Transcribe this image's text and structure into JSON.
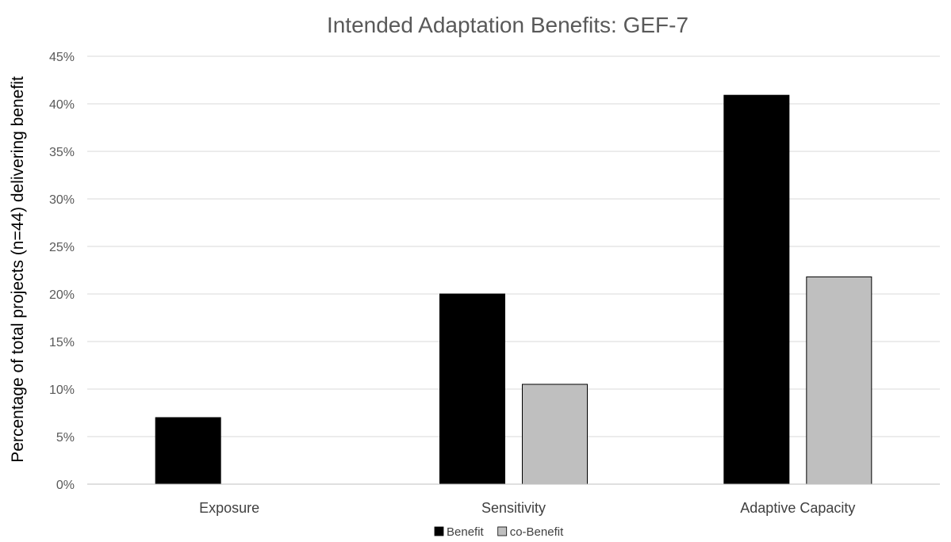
{
  "chart_data": {
    "type": "bar",
    "title": "Intended Adaptation Benefits: GEF-7",
    "xlabel": "",
    "ylabel": "Percentage of total projects (n=44) delivering benefit",
    "categories": [
      "Exposure",
      "Sensitivity",
      "Adaptive Capacity"
    ],
    "series": [
      {
        "name": "Benefit",
        "values": [
          7.0,
          20.0,
          40.9
        ],
        "color": "#000000"
      },
      {
        "name": "co-Benefit",
        "values": [
          0,
          10.5,
          21.8
        ],
        "color": "#bfbfbf"
      }
    ],
    "ylim": [
      0,
      45
    ],
    "yticks": [
      0,
      5,
      10,
      15,
      20,
      25,
      30,
      35,
      40,
      45
    ],
    "ytick_labels": [
      "0%",
      "5%",
      "10%",
      "15%",
      "20%",
      "25%",
      "30%",
      "35%",
      "40%",
      "45%"
    ],
    "grid": true,
    "legend_position": "bottom"
  }
}
